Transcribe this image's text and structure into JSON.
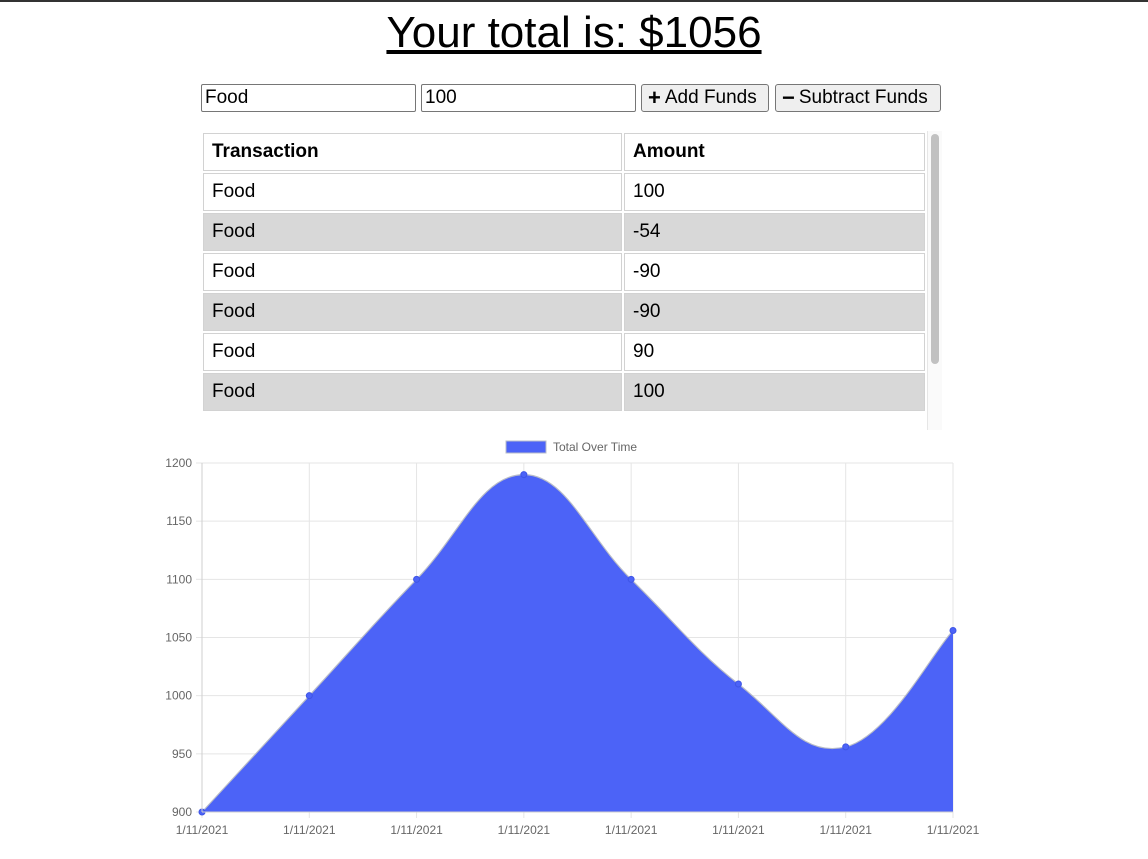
{
  "header": {
    "total_label": "Your total is: $1056"
  },
  "form": {
    "name_value": "Food",
    "amount_value": "100",
    "add_label": "Add Funds",
    "add_icon": "plus-icon",
    "subtract_label": "Subtract Funds",
    "subtract_icon": "minus-icon"
  },
  "table": {
    "headers": [
      "Transaction",
      "Amount"
    ],
    "rows": [
      [
        "Food",
        "100"
      ],
      [
        "Food",
        "-54"
      ],
      [
        "Food",
        "-90"
      ],
      [
        "Food",
        "-90"
      ],
      [
        "Food",
        "90"
      ],
      [
        "Food",
        "100"
      ]
    ]
  },
  "chart_data": {
    "type": "area",
    "legend": "top-center",
    "series": [
      {
        "name": "Total Over Time",
        "color": "#4c63f7",
        "values": [
          900,
          1000,
          1100,
          1190,
          1100,
          1010,
          956,
          1056
        ]
      }
    ],
    "categories": [
      "1/11/2021",
      "1/11/2021",
      "1/11/2021",
      "1/11/2021",
      "1/11/2021",
      "1/11/2021",
      "1/11/2021",
      "1/11/2021"
    ],
    "yticks": [
      "1200",
      "1150",
      "1100",
      "1050",
      "1000",
      "950",
      "900"
    ],
    "ylim": [
      900,
      1200
    ],
    "grid": true
  }
}
